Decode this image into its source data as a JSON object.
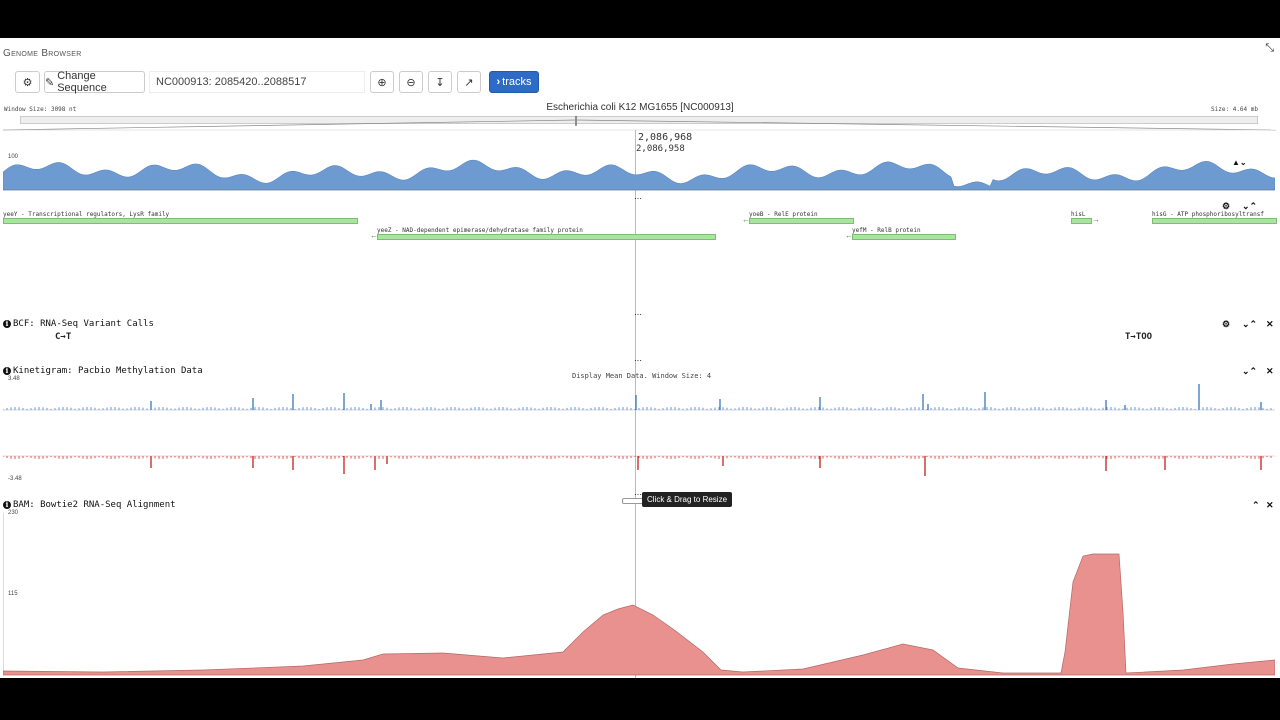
{
  "app": {
    "title": "Genome Browser"
  },
  "toolbar": {
    "change_sequence_label": "Change Sequence",
    "location_value": "NC000913: 2085420..2088517",
    "tracks_label": "tracks"
  },
  "ruler": {
    "window_size": "Window Size: 3098 nt",
    "chrom_title": "Escherichia coli K12 MG1655 [NC000913]",
    "genome_size": "Size: 4.64 mb",
    "cursor_position_1": "2,086,968",
    "cursor_position_2": "2,086,958"
  },
  "gc_track": {
    "y_max": "100",
    "y_mid": "50",
    "y_min": "0"
  },
  "genes": [
    {
      "label": "yeeY - Transcriptional regulators, LysR family"
    },
    {
      "label": "yeeZ - NAD-dependent epimerase/dehydratase family protein"
    },
    {
      "label": "yoeB - RelE protein"
    },
    {
      "label": "yefM - RelB protein"
    },
    {
      "label": "hisL"
    },
    {
      "label": "hisG - ATP phosphoribosyltransf"
    }
  ],
  "vcf_track": {
    "label": "BCF: RNA-Seq Variant Calls",
    "variant_1": "C→T",
    "variant_2": "T→TOO"
  },
  "kinetics_track": {
    "label": "Kinetigram: Pacbio Methylation Data",
    "display_note": "Display Mean Data. Window Size: 4",
    "y_max": "3.48",
    "y_min": "-3.48"
  },
  "bam_track": {
    "label": "BAM: Bowtie2 RNA-Seq Alignment",
    "y_max": "230",
    "y_mid": "115"
  },
  "tooltip": {
    "resize_hint": "Click & Drag to Resize"
  },
  "colors": {
    "gc": "#6d9bd1",
    "kinetics_pos": "#4a7fc0",
    "kinetics_neg": "#c9302c",
    "coverage": "#e8918f",
    "gene": "#a6e89b",
    "accent": "#2e6bc6"
  }
}
